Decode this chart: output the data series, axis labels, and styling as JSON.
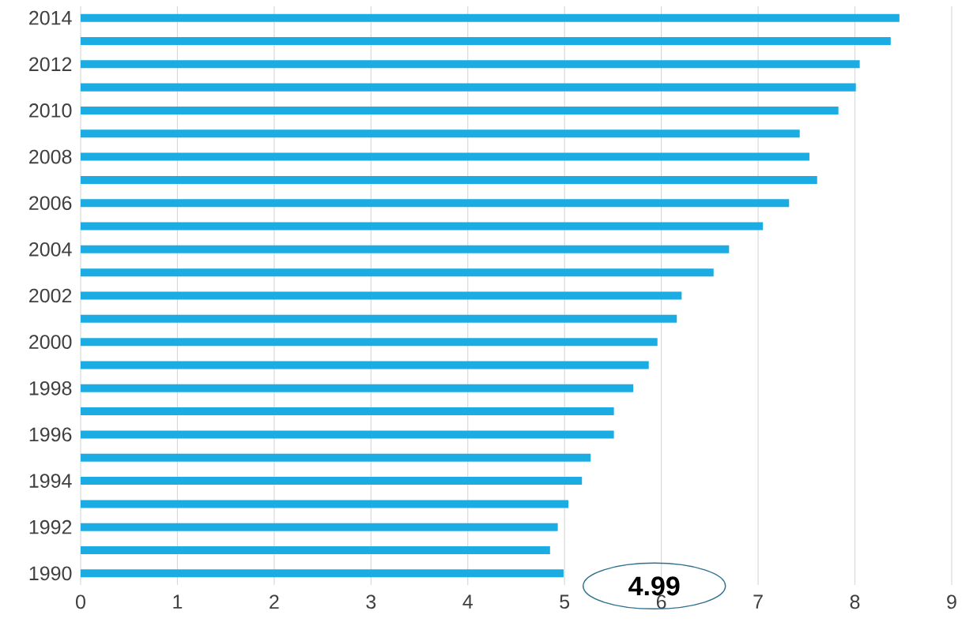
{
  "chart_data": {
    "type": "bar",
    "orientation": "horizontal",
    "categories": [
      "2014",
      null,
      "2012",
      null,
      "2010",
      null,
      "2008",
      null,
      "2006",
      null,
      "2004",
      null,
      "2002",
      null,
      "2000",
      null,
      "1998",
      null,
      "1996",
      null,
      "1994",
      null,
      "1992",
      null,
      "1990"
    ],
    "values": [
      8.46,
      8.37,
      8.05,
      8.01,
      7.83,
      7.43,
      7.53,
      7.61,
      7.32,
      7.05,
      6.7,
      6.54,
      6.21,
      6.16,
      5.96,
      5.87,
      5.71,
      5.51,
      5.51,
      5.27,
      5.18,
      5.04,
      4.93,
      4.85,
      4.99
    ],
    "color": "#1aace3",
    "xlim": [
      0,
      9
    ],
    "xticks": [
      0,
      1,
      2,
      3,
      4,
      5,
      6,
      7,
      8,
      9
    ],
    "grid": "x",
    "annotations": [
      {
        "text": "4.99",
        "x": 4.99,
        "y": "1990"
      }
    ]
  }
}
